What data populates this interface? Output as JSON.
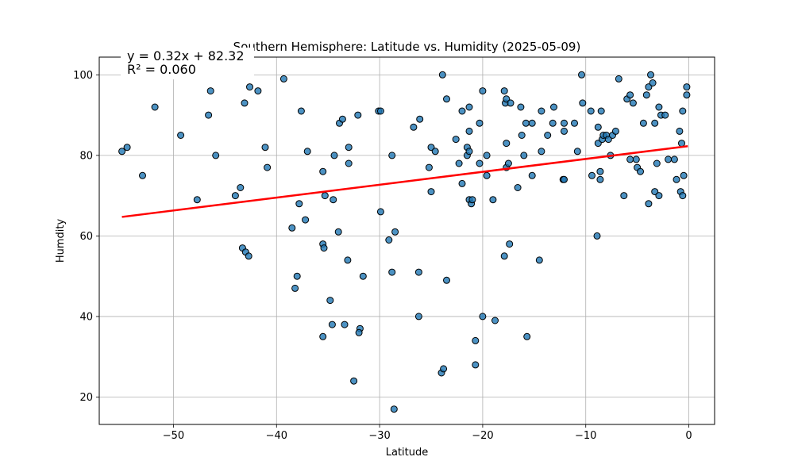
{
  "chart_data": {
    "type": "scatter",
    "title": "Southern Hemisphere: Latitude vs. Humidity (2025-05-09)",
    "xlabel": "Latitude",
    "ylabel": "Humdity",
    "xlim": [
      -57.2,
      2.5
    ],
    "ylim": [
      13.2,
      104.4
    ],
    "xticks": [
      -50,
      -40,
      -30,
      -20,
      -10,
      0
    ],
    "yticks": [
      20,
      40,
      60,
      80,
      100
    ],
    "xtick_labels": [
      "−50",
      "−40",
      "−30",
      "−20",
      "−10",
      "0"
    ],
    "ytick_labels": [
      "20",
      "40",
      "60",
      "80",
      "100"
    ],
    "grid": true,
    "point_color": "#1f77b4",
    "point_edge_color": "#000000",
    "line_color": "#ff0000",
    "annotation_color": "#ff0000",
    "annotation": {
      "equation": "y = 0.32x + 82.32",
      "r2": "R² = 0.060"
    },
    "regression": {
      "slope": 0.32,
      "intercept": 82.32,
      "x_range": [
        -55.0,
        -0.1
      ]
    },
    "points": [
      [
        -55.0,
        81
      ],
      [
        -54.5,
        82
      ],
      [
        -53.0,
        75
      ],
      [
        -51.8,
        92
      ],
      [
        -49.3,
        85
      ],
      [
        -47.7,
        69
      ],
      [
        -46.6,
        90
      ],
      [
        -46.4,
        96
      ],
      [
        -45.9,
        80
      ],
      [
        -44.0,
        70
      ],
      [
        -43.5,
        72
      ],
      [
        -43.3,
        57
      ],
      [
        -43.1,
        93
      ],
      [
        -43.0,
        56
      ],
      [
        -42.7,
        55
      ],
      [
        -42.6,
        97
      ],
      [
        -41.8,
        96
      ],
      [
        -41.1,
        82
      ],
      [
        -40.9,
        77
      ],
      [
        -39.3,
        99
      ],
      [
        -38.5,
        62
      ],
      [
        -38.2,
        47
      ],
      [
        -38.0,
        50
      ],
      [
        -37.8,
        68
      ],
      [
        -37.6,
        91
      ],
      [
        -37.2,
        64
      ],
      [
        -37.0,
        81
      ],
      [
        -35.5,
        58
      ],
      [
        -35.4,
        57
      ],
      [
        -35.5,
        35
      ],
      [
        -35.5,
        76
      ],
      [
        -35.3,
        70
      ],
      [
        -34.8,
        44
      ],
      [
        -34.6,
        38
      ],
      [
        -34.5,
        69
      ],
      [
        -34.4,
        80
      ],
      [
        -34.0,
        61
      ],
      [
        -33.9,
        88
      ],
      [
        -33.6,
        89
      ],
      [
        -33.4,
        38
      ],
      [
        -33.1,
        54
      ],
      [
        -33.0,
        82
      ],
      [
        -33.0,
        78
      ],
      [
        -32.5,
        24
      ],
      [
        -32.1,
        90
      ],
      [
        -31.9,
        37
      ],
      [
        -32.0,
        36
      ],
      [
        -31.6,
        50
      ],
      [
        -30.1,
        91
      ],
      [
        -29.9,
        91
      ],
      [
        -29.9,
        66
      ],
      [
        -29.1,
        59
      ],
      [
        -28.8,
        80
      ],
      [
        -28.8,
        51
      ],
      [
        -28.5,
        61
      ],
      [
        -28.6,
        17
      ],
      [
        -26.7,
        87
      ],
      [
        -26.1,
        89
      ],
      [
        -26.2,
        51
      ],
      [
        -26.2,
        40
      ],
      [
        -25.2,
        77
      ],
      [
        -25.0,
        82
      ],
      [
        -25.0,
        71
      ],
      [
        -24.6,
        81
      ],
      [
        -23.9,
        100
      ],
      [
        -24.0,
        26
      ],
      [
        -23.8,
        27
      ],
      [
        -23.5,
        94
      ],
      [
        -23.5,
        49
      ],
      [
        -22.6,
        84
      ],
      [
        -22.3,
        78
      ],
      [
        -22.0,
        73
      ],
      [
        -22.0,
        91
      ],
      [
        -21.5,
        82
      ],
      [
        -21.5,
        80
      ],
      [
        -21.3,
        92
      ],
      [
        -21.3,
        86
      ],
      [
        -21.3,
        81
      ],
      [
        -21.3,
        69
      ],
      [
        -21.1,
        68
      ],
      [
        -21.0,
        69
      ],
      [
        -20.7,
        34
      ],
      [
        -20.7,
        28
      ],
      [
        -20.3,
        88
      ],
      [
        -20.3,
        78
      ],
      [
        -20.0,
        96
      ],
      [
        -20.0,
        40
      ],
      [
        -19.6,
        80
      ],
      [
        -19.6,
        75
      ],
      [
        -19.0,
        69
      ],
      [
        -18.8,
        39
      ],
      [
        -17.9,
        96
      ],
      [
        -17.8,
        93
      ],
      [
        -17.7,
        94
      ],
      [
        -17.7,
        83
      ],
      [
        -17.7,
        77
      ],
      [
        -17.9,
        55
      ],
      [
        -17.5,
        78
      ],
      [
        -17.4,
        58
      ],
      [
        -17.3,
        93
      ],
      [
        -16.6,
        72
      ],
      [
        -16.3,
        92
      ],
      [
        -16.2,
        85
      ],
      [
        -16.0,
        80
      ],
      [
        -15.8,
        88
      ],
      [
        -15.7,
        35
      ],
      [
        -15.2,
        88
      ],
      [
        -15.2,
        75
      ],
      [
        -14.5,
        54
      ],
      [
        -14.3,
        91
      ],
      [
        -14.3,
        81
      ],
      [
        -13.7,
        85
      ],
      [
        -13.2,
        88
      ],
      [
        -13.1,
        92
      ],
      [
        -12.2,
        74
      ],
      [
        -12.1,
        74
      ],
      [
        -12.1,
        86
      ],
      [
        -12.1,
        88
      ],
      [
        -11.1,
        88
      ],
      [
        -10.8,
        81
      ],
      [
        -10.4,
        100
      ],
      [
        -10.3,
        93
      ],
      [
        -9.5,
        91
      ],
      [
        -9.4,
        75
      ],
      [
        -8.9,
        60
      ],
      [
        -8.8,
        87
      ],
      [
        -8.8,
        83
      ],
      [
        -8.6,
        74
      ],
      [
        -8.6,
        76
      ],
      [
        -8.5,
        91
      ],
      [
        -8.4,
        84
      ],
      [
        -8.3,
        85
      ],
      [
        -8.0,
        85
      ],
      [
        -7.8,
        84
      ],
      [
        -7.6,
        80
      ],
      [
        -7.4,
        85
      ],
      [
        -7.1,
        86
      ],
      [
        -6.8,
        99
      ],
      [
        -6.3,
        70
      ],
      [
        -6.0,
        94
      ],
      [
        -5.7,
        95
      ],
      [
        -5.7,
        79
      ],
      [
        -5.4,
        93
      ],
      [
        -5.1,
        79
      ],
      [
        -5.0,
        77
      ],
      [
        -4.7,
        76
      ],
      [
        -4.4,
        88
      ],
      [
        -4.1,
        95
      ],
      [
        -3.9,
        97
      ],
      [
        -3.9,
        68
      ],
      [
        -3.7,
        100
      ],
      [
        -3.5,
        98
      ],
      [
        -3.3,
        71
      ],
      [
        -3.3,
        88
      ],
      [
        -3.1,
        78
      ],
      [
        -2.9,
        92
      ],
      [
        -2.9,
        70
      ],
      [
        -2.7,
        90
      ],
      [
        -2.3,
        90
      ],
      [
        -2.0,
        79
      ],
      [
        -1.4,
        79
      ],
      [
        -1.2,
        74
      ],
      [
        -0.9,
        86
      ],
      [
        -0.8,
        71
      ],
      [
        -0.7,
        83
      ],
      [
        -0.6,
        91
      ],
      [
        -0.6,
        70
      ],
      [
        -0.5,
        75
      ],
      [
        -0.2,
        97
      ],
      [
        -0.2,
        95
      ]
    ]
  }
}
